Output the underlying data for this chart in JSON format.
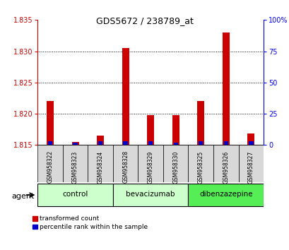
{
  "title": "GDS5672 / 238789_at",
  "samples": [
    "GSM958322",
    "GSM958323",
    "GSM958324",
    "GSM958328",
    "GSM958329",
    "GSM958330",
    "GSM958325",
    "GSM958326",
    "GSM958327"
  ],
  "transformed_counts": [
    1.822,
    1.8155,
    1.8165,
    1.8305,
    1.8198,
    1.8198,
    1.822,
    1.833,
    1.8168
  ],
  "percentile_ranks": [
    3,
    2,
    3,
    3,
    3,
    2,
    3,
    3,
    3
  ],
  "groups": [
    {
      "name": "control",
      "indices": [
        0,
        1,
        2
      ],
      "color": "#ccffcc"
    },
    {
      "name": "bevacizumab",
      "indices": [
        3,
        4,
        5
      ],
      "color": "#ccffcc"
    },
    {
      "name": "dibenzazepine",
      "indices": [
        6,
        7,
        8
      ],
      "color": "#55ee55"
    }
  ],
  "ylim_left": [
    1.815,
    1.835
  ],
  "ylim_right": [
    0,
    100
  ],
  "yticks_left": [
    1.815,
    1.82,
    1.825,
    1.83,
    1.835
  ],
  "yticks_right": [
    0,
    25,
    50,
    75,
    100
  ],
  "red_color": "#cc0000",
  "blue_color": "#0000cc",
  "baseline": 1.815,
  "agent_label": "agent",
  "legend_red": "transformed count",
  "legend_blue": "percentile rank within the sample",
  "background_color": "#ffffff",
  "title_color": "#000000",
  "grid_yticks": [
    1.82,
    1.825,
    1.83
  ]
}
